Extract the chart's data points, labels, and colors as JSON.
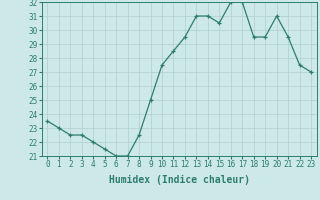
{
  "x": [
    0,
    1,
    2,
    3,
    4,
    5,
    6,
    7,
    8,
    9,
    10,
    11,
    12,
    13,
    14,
    15,
    16,
    17,
    18,
    19,
    20,
    21,
    22,
    23
  ],
  "y": [
    23.5,
    23.0,
    22.5,
    22.5,
    22.0,
    21.5,
    21.0,
    21.0,
    22.5,
    25.0,
    27.5,
    28.5,
    29.5,
    31.0,
    31.0,
    30.5,
    32.0,
    32.0,
    29.5,
    29.5,
    31.0,
    29.5,
    27.5,
    27.0
  ],
  "xlabel": "Humidex (Indice chaleur)",
  "ylim": [
    21,
    32
  ],
  "xlim": [
    -0.5,
    23.5
  ],
  "yticks": [
    21,
    22,
    23,
    24,
    25,
    26,
    27,
    28,
    29,
    30,
    31,
    32
  ],
  "xticks": [
    0,
    1,
    2,
    3,
    4,
    5,
    6,
    7,
    8,
    9,
    10,
    11,
    12,
    13,
    14,
    15,
    16,
    17,
    18,
    19,
    20,
    21,
    22,
    23
  ],
  "line_color": "#2e7d6e",
  "marker": "+",
  "bg_color": "#cce8e8",
  "grid_color": "#b0cfcf",
  "tick_fontsize": 5.5,
  "xlabel_fontsize": 7.0
}
